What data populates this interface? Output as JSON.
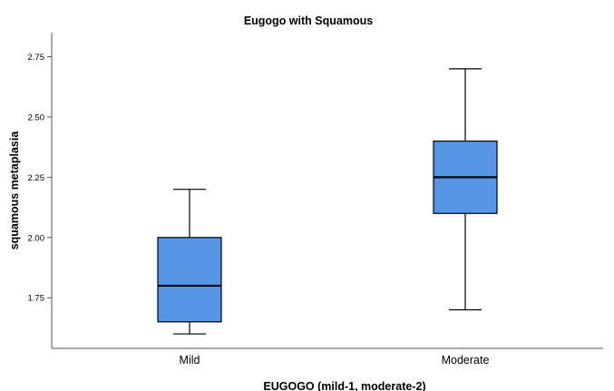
{
  "chart_data": {
    "type": "boxplot",
    "title": "Eugogo with Squamous",
    "xlabel": "EUGOGO (mild-1, moderate-2)",
    "ylabel": "squamous metaplasia",
    "categories": [
      "Mild",
      "Moderate"
    ],
    "boxes": [
      {
        "category": "Mild",
        "min": 1.6,
        "q1": 1.65,
        "median": 1.8,
        "q3": 2.0,
        "max": 2.2
      },
      {
        "category": "Moderate",
        "min": 1.7,
        "q1": 2.1,
        "median": 2.25,
        "q3": 2.4,
        "max": 2.7
      }
    ],
    "yticks": [
      "1.75",
      "2.00",
      "2.25",
      "2.50",
      "2.75"
    ],
    "ylim": [
      1.54,
      2.85
    ],
    "grid": false,
    "box_color": "#5596E6"
  }
}
